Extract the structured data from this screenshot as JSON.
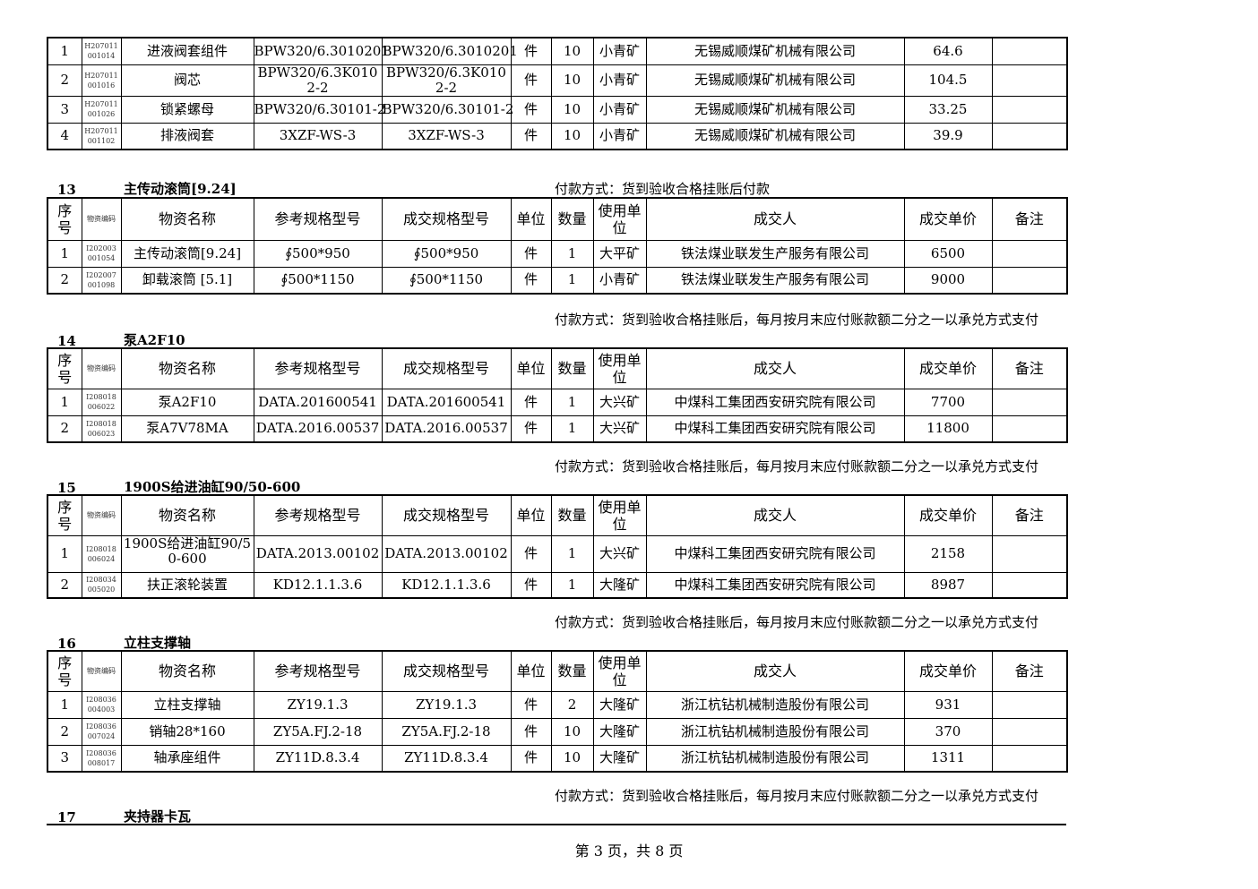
{
  "columns_header": [
    "序号",
    "物资编码",
    "物资名称",
    "参考规格型号",
    "成交规格型号",
    "单位",
    "数量",
    "使用单位",
    "成交人",
    "成交单价",
    "备注"
  ],
  "sections": [
    {
      "id": "top",
      "number": "",
      "title": "",
      "payment": "",
      "show_header": false,
      "rows": [
        [
          "1",
          "H207011\n001014",
          "进液阀套组件",
          "BPW320/6.3010201",
          "BPW320/6.3010201",
          "件",
          "10",
          "小青矿",
          "无锡威顺煤矿机械有限公司",
          "64.6",
          ""
        ],
        [
          "2",
          "H207011\n001016",
          "阀芯",
          "BPW320/6.3K0102-2",
          "BPW320/6.3K0102-2",
          "件",
          "10",
          "小青矿",
          "无锡威顺煤矿机械有限公司",
          "104.5",
          ""
        ],
        [
          "3",
          "H207011\n001026",
          "锁紧螺母",
          "BPW320/6.30101-2",
          "BPW320/6.30101-2",
          "件",
          "10",
          "小青矿",
          "无锡威顺煤矿机械有限公司",
          "33.25",
          ""
        ],
        [
          "4",
          "H207011\n001102",
          "排液阀套",
          "3XZF-WS-3",
          "3XZF-WS-3",
          "件",
          "10",
          "小青矿",
          "无锡威顺煤矿机械有限公司",
          "39.9",
          ""
        ]
      ]
    },
    {
      "id": "13",
      "number": "13",
      "title": "主传动滚筒[9.24]",
      "payment": "付款方式：货到验收合格挂账后付款",
      "show_header": true,
      "rows": [
        [
          "1",
          "I202003\n001054",
          "主传动滚筒[9.24]",
          "∮500*950",
          "∮500*950",
          "件",
          "1",
          "大平矿",
          "铁法煤业联发生产服务有限公司",
          "6500",
          ""
        ],
        [
          "2",
          "I202007\n001098",
          "卸载滚筒 [5.1]",
          "∮500*1150",
          "∮500*1150",
          "件",
          "1",
          "小青矿",
          "铁法煤业联发生产服务有限公司",
          "9000",
          ""
        ]
      ]
    },
    {
      "id": "14",
      "number": "14",
      "title": "泵A2F10",
      "payment": "付款方式：货到验收合格挂账后，每月按月末应付账款额二分之一以承兑方式支付",
      "show_header": true,
      "rows": [
        [
          "1",
          "I208018\n006022",
          "泵A2F10",
          "DATA.201600541",
          "DATA.201600541",
          "件",
          "1",
          "大兴矿",
          "中煤科工集团西安研究院有限公司",
          "7700",
          ""
        ],
        [
          "2",
          "I208018\n006023",
          "泵A7V78MA",
          "DATA.2016.00537",
          "DATA.2016.00537",
          "件",
          "1",
          "大兴矿",
          "中煤科工集团西安研究院有限公司",
          "11800",
          ""
        ]
      ]
    },
    {
      "id": "15",
      "number": "15",
      "title": "1900S给进油缸90/50-600",
      "payment": "付款方式：货到验收合格挂账后，每月按月末应付账款额二分之一以承兑方式支付",
      "show_header": true,
      "rows": [
        [
          "1",
          "I208018\n006024",
          "1900S给进油缸90/50-600",
          "DATA.2013.00102",
          "DATA.2013.00102",
          "件",
          "1",
          "大兴矿",
          "中煤科工集团西安研究院有限公司",
          "2158",
          ""
        ],
        [
          "2",
          "I208034\n005020",
          "扶正滚轮装置",
          "KD12.1.1.3.6",
          "KD12.1.1.3.6",
          "件",
          "1",
          "大隆矿",
          "中煤科工集团西安研究院有限公司",
          "8987",
          ""
        ]
      ]
    },
    {
      "id": "16",
      "number": "16",
      "title": "立柱支撑轴",
      "payment": "付款方式：货到验收合格挂账后，每月按月末应付账款额二分之一以承兑方式支付",
      "show_header": true,
      "rows": [
        [
          "1",
          "I208036\n004003",
          "立柱支撑轴",
          "ZY19.1.3",
          "ZY19.1.3",
          "件",
          "2",
          "大隆矿",
          "浙江杭钻机械制造股份有限公司",
          "931",
          ""
        ],
        [
          "2",
          "I208036\n007024",
          "销轴28*160",
          "ZY5A.FJ.2-18",
          "ZY5A.FJ.2-18",
          "件",
          "10",
          "大隆矿",
          "浙江杭钻机械制造股份有限公司",
          "370",
          ""
        ],
        [
          "3",
          "I208036\n008017",
          "轴承座组件",
          "ZY11D.8.3.4",
          "ZY11D.8.3.4",
          "件",
          "10",
          "大隆矿",
          "浙江杭钻机械制造股份有限公司",
          "1311",
          ""
        ]
      ]
    },
    {
      "id": "17",
      "number": "17",
      "title": "夹持器卡瓦",
      "payment": "付款方式：货到验收合格挂账后，每月按月末应付账款额二分之一以承兑方式支付",
      "show_header": false,
      "rows": []
    }
  ],
  "footer": "第 3 页，共 8 页"
}
